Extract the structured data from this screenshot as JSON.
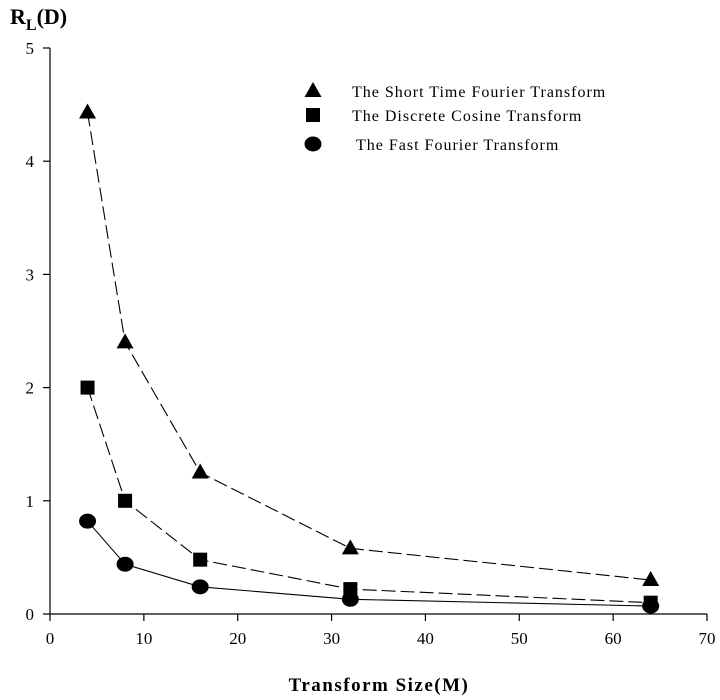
{
  "chart_data": {
    "type": "line",
    "xlabel": "Transform Size(M)",
    "ylabel_main": "R",
    "ylabel_sub": "L",
    "ylabel_suffix": "(D)",
    "xlim": [
      0,
      70
    ],
    "ylim": [
      0,
      5
    ],
    "xticks": [
      0,
      10,
      20,
      30,
      40,
      50,
      60,
      70
    ],
    "yticks": [
      0,
      1,
      2,
      3,
      4,
      5
    ],
    "grid": false,
    "legend_position": "top-right",
    "series": [
      {
        "name": "The Short Time Fourier Transform",
        "marker": "triangle",
        "line": "dashed",
        "x": [
          4,
          8,
          16,
          32,
          64
        ],
        "y": [
          4.43,
          2.4,
          1.25,
          0.58,
          0.3
        ]
      },
      {
        "name": "The Discrete Cosine Transform",
        "marker": "square",
        "line": "dashed",
        "x": [
          4,
          8,
          16,
          32,
          64
        ],
        "y": [
          2.0,
          1.0,
          0.48,
          0.22,
          0.1
        ]
      },
      {
        "name": "The Fast Fourier Transform",
        "marker": "circle",
        "line": "solid",
        "x": [
          4,
          8,
          16,
          32,
          64
        ],
        "y": [
          0.82,
          0.44,
          0.24,
          0.13,
          0.07
        ]
      }
    ]
  }
}
